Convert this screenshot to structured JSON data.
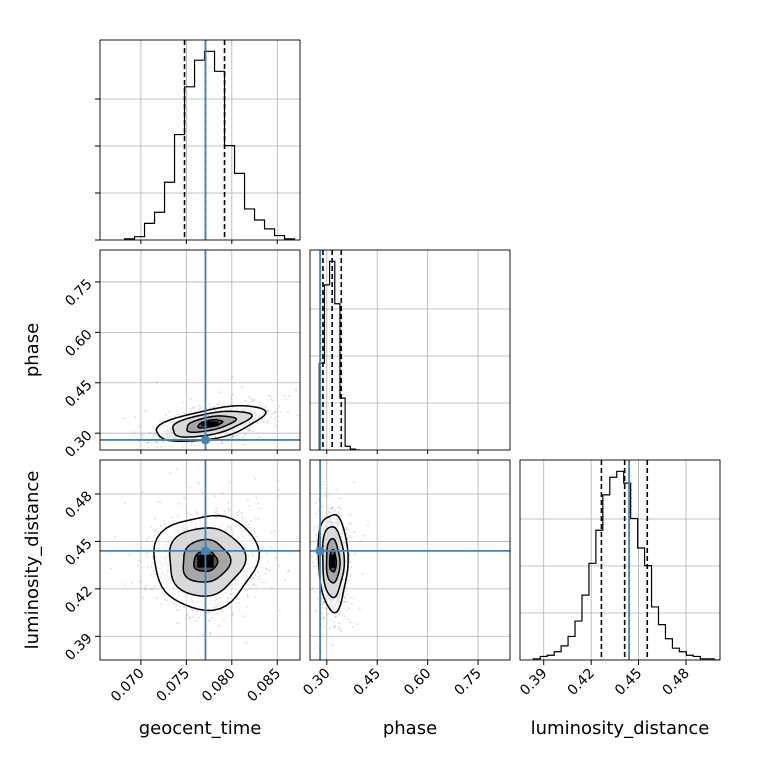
{
  "chart_data": {
    "type": "corner",
    "parameters": [
      "geocent_time",
      "phase",
      "luminosity_distance"
    ],
    "axis_labels": {
      "geocent_time": "geocent_time",
      "phase": "phase",
      "luminosity_distance": "luminosity_distance"
    },
    "truths": {
      "geocent_time": 0.0771,
      "phase": 0.28,
      "luminosity_distance": 0.444
    },
    "truth_color": "#4682b4",
    "ranges": {
      "geocent_time": [
        0.0655,
        0.0875
      ],
      "phase": [
        0.25,
        0.845
      ],
      "luminosity_distance": [
        0.375,
        0.5015
      ]
    },
    "ticks": {
      "geocent_time": [
        "0.070",
        "0.075",
        "0.080",
        "0.085"
      ],
      "phase": [
        "0.30",
        "0.45",
        "0.60",
        "0.75"
      ],
      "luminosity_distance": [
        "0.39",
        "0.42",
        "0.45",
        "0.48"
      ]
    },
    "histograms": {
      "geocent_time": {
        "bin_edges": [
          0.0682,
          0.0693,
          0.0704,
          0.0715,
          0.0726,
          0.0737,
          0.0748,
          0.0759,
          0.077,
          0.0781,
          0.0792,
          0.0803,
          0.0814,
          0.0825,
          0.0836,
          0.0847,
          0.0858,
          0.0869
        ],
        "counts": [
          1,
          3,
          15,
          25,
          52,
          95,
          138,
          162,
          170,
          152,
          85,
          60,
          28,
          18,
          10,
          4,
          1
        ],
        "quantiles": [
          0.0748,
          0.0771,
          0.0792
        ]
      },
      "phase": {
        "bin_edges": [
          0.2775,
          0.2929,
          0.3083,
          0.3237,
          0.3391,
          0.3545,
          0.3699,
          0.3853,
          0.4007
        ],
        "counts": [
          92,
          175,
          200,
          155,
          55,
          4,
          1,
          0
        ],
        "quantiles": [
          0.2885,
          0.316,
          0.343
        ]
      },
      "luminosity_distance": {
        "bin_edges": [
          0.3834,
          0.3878,
          0.3922,
          0.3966,
          0.401,
          0.4054,
          0.4098,
          0.4142,
          0.4186,
          0.423,
          0.4274,
          0.4318,
          0.4362,
          0.4406,
          0.445,
          0.4494,
          0.4538,
          0.4582,
          0.4626,
          0.467,
          0.4714,
          0.4758,
          0.4802,
          0.4846,
          0.489,
          0.4934,
          0.4978,
          0.5022
        ],
        "counts": [
          1,
          3,
          4,
          7,
          12,
          20,
          33,
          55,
          82,
          110,
          140,
          155,
          160,
          150,
          120,
          95,
          80,
          45,
          30,
          18,
          10,
          7,
          4,
          3,
          1,
          1,
          0
        ],
        "quantiles": [
          0.4265,
          0.4412,
          0.4555
        ]
      }
    },
    "joint": [
      {
        "x": "geocent_time",
        "y": "phase",
        "center": [
          0.0776,
          0.328
        ],
        "sigma": [
          0.0027,
          0.024
        ],
        "corr": 0.55,
        "contour_levels": [
          0.5,
          1.0,
          1.6,
          2.2
        ]
      },
      {
        "x": "geocent_time",
        "y": "luminosity_distance",
        "center": [
          0.0771,
          0.4375
        ],
        "sigma": [
          0.0026,
          0.0135
        ],
        "corr": 0.05,
        "contour_levels": [
          0.5,
          1.0,
          1.6,
          2.2
        ]
      },
      {
        "x": "phase",
        "y": "luminosity_distance",
        "center": [
          0.318,
          0.4375
        ],
        "sigma": [
          0.02,
          0.014
        ],
        "corr": -0.05,
        "contour_levels": [
          0.5,
          1.0,
          1.6,
          2.2
        ]
      }
    ],
    "grid": true
  }
}
